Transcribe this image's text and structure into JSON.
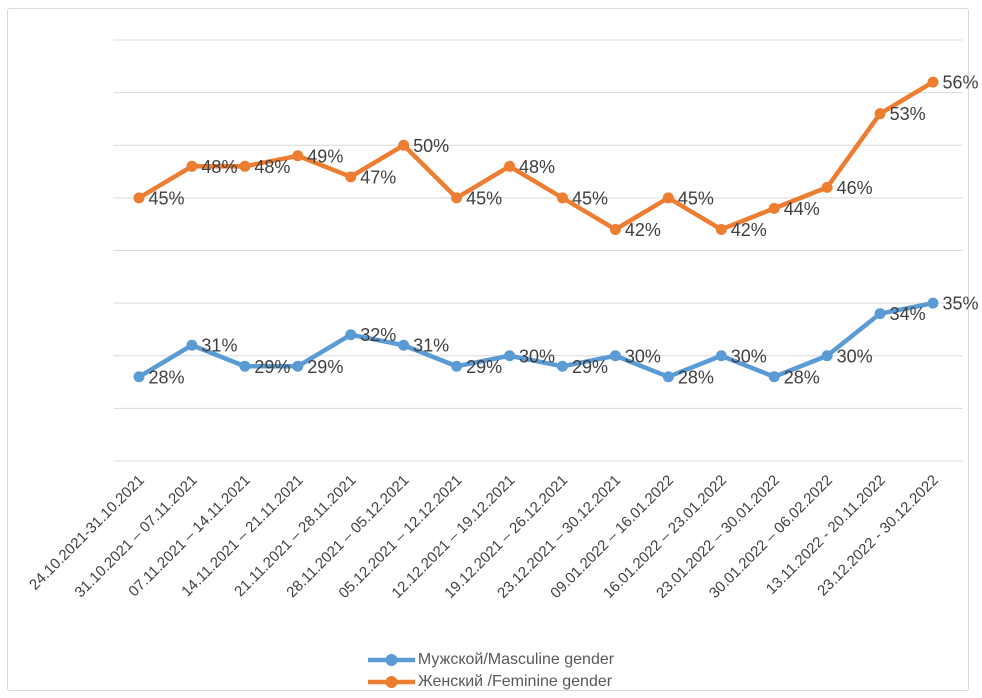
{
  "chart_data": {
    "type": "line",
    "title": "",
    "xlabel": "",
    "ylabel": "",
    "categories": [
      "24.10.2021-31.10.2021",
      "31.10.2021 – 07.11.2021",
      "07.11.2021 – 14.11.2021",
      "14.11.2021 – 21.11.2021",
      "21.11.2021 – 28.11.2021",
      "28.11.2021 – 05.12.2021",
      "05.12.2021 – 12.12.2021",
      "12.12.2021 – 19.12.2021",
      "19.12.2021 – 26.12.2021",
      "23.12.2021 – 30.12.2021",
      "09.01.2022 – 16.01.2022",
      "16.01.2022 – 23.01.2022",
      "23.01.2022 – 30.01.2022",
      "30.01.2022 – 06.02.2022",
      "13.11.2022 - 20.11.2022",
      "23.12.2022 - 30.12.2022"
    ],
    "series": [
      {
        "name": "Мужской/Masculine gender",
        "color": "#5B9BD5",
        "values": [
          28,
          31,
          29,
          29,
          32,
          31,
          29,
          30,
          29,
          30,
          28,
          30,
          28,
          30,
          34,
          35
        ]
      },
      {
        "name": "Женский /Feminine gender",
        "color": "#ED7D31",
        "values": [
          45,
          48,
          48,
          49,
          47,
          50,
          45,
          48,
          45,
          42,
          45,
          42,
          44,
          46,
          53,
          56
        ]
      }
    ],
    "ylim": [
      20,
      60
    ],
    "grid_step": 5,
    "grid": "on",
    "y_axis_labels": "hidden",
    "legend_position": "bottom",
    "data_label_format": "{v}%",
    "data_label_position": "right",
    "colors": {
      "gridline": "#D9D9D9",
      "axis_line": "#D9D9D9",
      "data_label_text": "#404040",
      "axis_text": "#404040",
      "legend_text": "#595959",
      "chart_border": "#D9D9D9"
    }
  }
}
